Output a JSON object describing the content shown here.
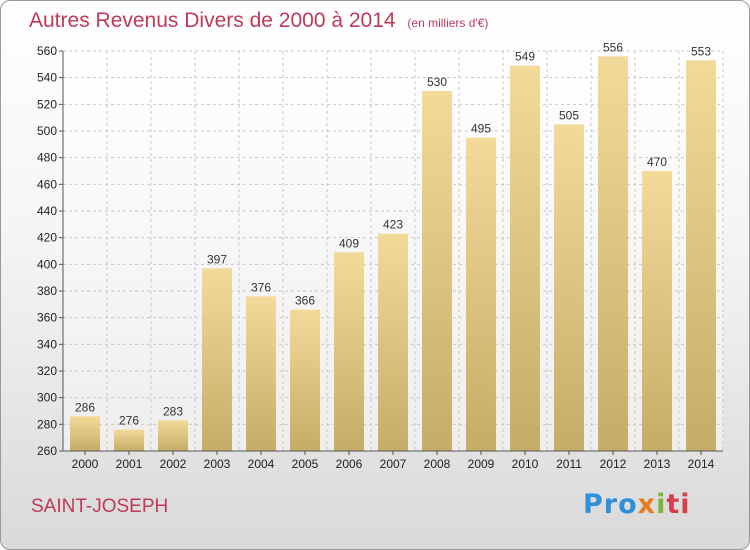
{
  "header": {
    "title": "Autres Revenus Divers de 2000 à 2014",
    "unit": "(en milliers d'€)"
  },
  "footer": {
    "place": "SAINT-JOSEPH",
    "logo_parts": [
      "Pro",
      "x",
      "i",
      "ti"
    ]
  },
  "colors": {
    "title": "#c0395a",
    "bar_top": "#f3da99",
    "bar_bottom": "#c5ac66",
    "grid": "#c8c8c8"
  },
  "chart_data": {
    "type": "bar",
    "categories": [
      "2000",
      "2001",
      "2002",
      "2003",
      "2004",
      "2005",
      "2006",
      "2007",
      "2008",
      "2009",
      "2010",
      "2011",
      "2012",
      "2013",
      "2014"
    ],
    "values": [
      286,
      276,
      283,
      397,
      376,
      366,
      409,
      423,
      530,
      495,
      549,
      505,
      556,
      470,
      553
    ],
    "title": "Autres Revenus Divers de 2000 à 2014",
    "ylim": [
      260,
      560
    ],
    "yticks": [
      260,
      280,
      300,
      320,
      340,
      360,
      380,
      400,
      420,
      440,
      460,
      480,
      500,
      520,
      540,
      560
    ],
    "grid": true
  }
}
